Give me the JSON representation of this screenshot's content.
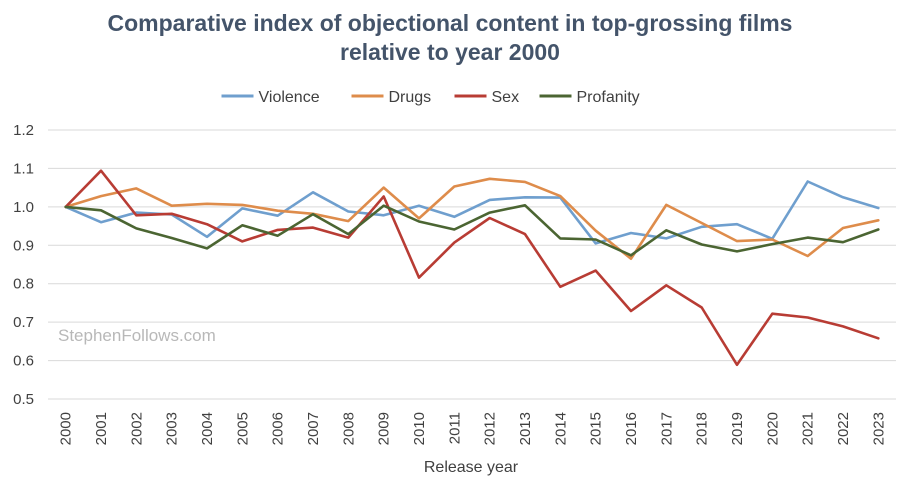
{
  "chart_data": {
    "type": "line",
    "title_lines": [
      "Comparative index of objectional content in top-grossing films",
      "relative to year 2000"
    ],
    "xlabel": "Release year",
    "ylabel": "",
    "ylim": [
      0.5,
      1.2
    ],
    "yticks": [
      "0.5",
      "0.6",
      "0.7",
      "0.8",
      "0.9",
      "1.0",
      "1.1",
      "1.2"
    ],
    "ytick_values": [
      0.5,
      0.6,
      0.7,
      0.8,
      0.9,
      1.0,
      1.1,
      1.2
    ],
    "grid": true,
    "legend_position": "top",
    "watermark": "StephenFollows.com",
    "categories": [
      "2000",
      "2001",
      "2002",
      "2003",
      "2004",
      "2005",
      "2006",
      "2007",
      "2008",
      "2009",
      "2010",
      "2011",
      "2012",
      "2013",
      "2014",
      "2015",
      "2016",
      "2017",
      "2018",
      "2019",
      "2020",
      "2021",
      "2022",
      "2023"
    ],
    "series": [
      {
        "name": "Violence",
        "color": "#6f9fce",
        "values": [
          1.0,
          0.96,
          0.985,
          0.98,
          0.922,
          0.996,
          0.977,
          1.038,
          0.988,
          0.978,
          1.003,
          0.974,
          1.018,
          1.025,
          1.024,
          0.905,
          0.932,
          0.918,
          0.948,
          0.955,
          0.917,
          1.066,
          1.025,
          0.997
        ]
      },
      {
        "name": "Drugs",
        "color": "#de8c4b",
        "values": [
          1.0,
          1.028,
          1.048,
          1.003,
          1.008,
          1.005,
          0.99,
          0.982,
          0.963,
          1.05,
          0.97,
          1.053,
          1.073,
          1.065,
          1.028,
          0.938,
          0.865,
          1.005,
          0.958,
          0.911,
          0.915,
          0.872,
          0.945,
          0.965
        ]
      },
      {
        "name": "Sex",
        "color": "#b83c34",
        "values": [
          1.0,
          1.094,
          0.978,
          0.982,
          0.955,
          0.91,
          0.94,
          0.946,
          0.92,
          1.027,
          0.816,
          0.907,
          0.971,
          0.929,
          0.792,
          0.834,
          0.729,
          0.796,
          0.738,
          0.589,
          0.722,
          0.712,
          0.689,
          0.658
        ]
      },
      {
        "name": "Profanity",
        "color": "#4b6532",
        "values": [
          1.0,
          0.991,
          0.944,
          0.919,
          0.892,
          0.952,
          0.925,
          0.981,
          0.929,
          1.003,
          0.962,
          0.941,
          0.985,
          1.004,
          0.918,
          0.915,
          0.874,
          0.939,
          0.902,
          0.884,
          0.903,
          0.92,
          0.908,
          0.941
        ]
      }
    ]
  }
}
